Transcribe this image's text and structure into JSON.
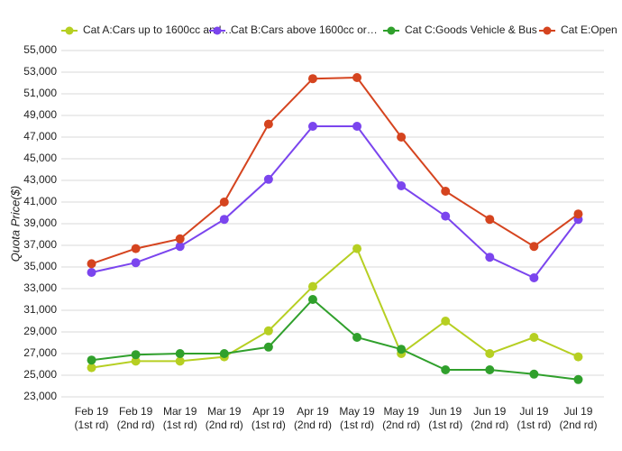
{
  "chart_data": {
    "type": "line",
    "y_label": "Quota Price($)",
    "categories": [
      [
        "Feb 19",
        "(1st rd)"
      ],
      [
        "Feb 19",
        "(2nd rd)"
      ],
      [
        "Mar 19",
        "(1st rd)"
      ],
      [
        "Mar 19",
        "(2nd rd)"
      ],
      [
        "Apr 19",
        "(1st rd)"
      ],
      [
        "Apr 19",
        "(2nd rd)"
      ],
      [
        "May 19",
        "(1st rd)"
      ],
      [
        "May 19",
        "(2nd rd)"
      ],
      [
        "Jun 19",
        "(1st rd)"
      ],
      [
        "Jun 19",
        "(2nd rd)"
      ],
      [
        "Jul 19",
        "(1st rd)"
      ],
      [
        "Jul 19",
        "(2nd rd)"
      ]
    ],
    "series": [
      {
        "name": "Cat A:Cars up to 1600cc and…",
        "color": "#b6cf22",
        "values": [
          25700,
          26300,
          26300,
          26700,
          29100,
          33200,
          36700,
          27000,
          30000,
          27000,
          28500,
          26700
        ]
      },
      {
        "name": "Cat B:Cars above 1600cc or…",
        "color": "#7b45ee",
        "values": [
          34500,
          35400,
          36900,
          39400,
          43100,
          48000,
          48000,
          42500,
          39700,
          35900,
          34000,
          39400
        ]
      },
      {
        "name": "Cat C:Goods Vehicle & Bus",
        "color": "#30a02c",
        "values": [
          26400,
          26900,
          27000,
          27000,
          27600,
          32000,
          28500,
          27400,
          25500,
          25500,
          25100,
          24600
        ]
      },
      {
        "name": "Cat E:Open",
        "color": "#d5441f",
        "values": [
          35300,
          36700,
          37600,
          41000,
          48200,
          52400,
          52500,
          47000,
          42000,
          39400,
          36900,
          39900
        ]
      }
    ],
    "ylim": [
      23000,
      55000
    ],
    "yticks": [
      {
        "value": 23000,
        "label": "23,000"
      },
      {
        "value": 25000,
        "label": "25,000"
      },
      {
        "value": 27000,
        "label": "27,000"
      },
      {
        "value": 29000,
        "label": "29,000"
      },
      {
        "value": 31000,
        "label": "31,000"
      },
      {
        "value": 33000,
        "label": "33,000"
      },
      {
        "value": 35000,
        "label": "35,000"
      },
      {
        "value": 37000,
        "label": "37,000"
      },
      {
        "value": 39000,
        "label": "39,000"
      },
      {
        "value": 41000,
        "label": "41,000"
      },
      {
        "value": 43000,
        "label": "43,000"
      },
      {
        "value": 45000,
        "label": "45,000"
      },
      {
        "value": 47000,
        "label": "47,000"
      },
      {
        "value": 49000,
        "label": "49,000"
      },
      {
        "value": 51000,
        "label": "51,000"
      },
      {
        "value": 53000,
        "label": "53,000"
      },
      {
        "value": 55000,
        "label": "55,000"
      }
    ],
    "grid": true,
    "legend": "top"
  }
}
